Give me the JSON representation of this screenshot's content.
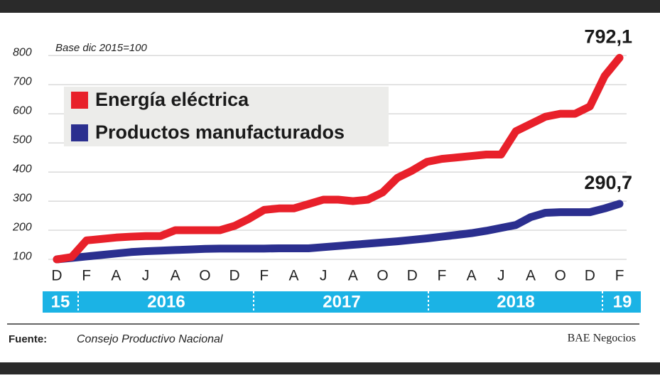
{
  "chart_data": {
    "type": "line",
    "subtitle": "Base dic 2015=100",
    "categories": [
      "D",
      null,
      "F",
      null,
      "A",
      null,
      "J",
      null,
      "A",
      null,
      "O",
      null,
      "D",
      null,
      "F",
      null,
      "A",
      null,
      "J",
      null,
      "A",
      null,
      "O",
      null,
      "D",
      null,
      "F",
      null,
      "A",
      null,
      "J",
      null,
      "A",
      null,
      "O",
      null,
      "D",
      null,
      "F"
    ],
    "year_labels": [
      "15",
      "2016",
      "2017",
      "2018",
      "19"
    ],
    "series": [
      {
        "name": "Energía eléctrica",
        "color": "#e8202a",
        "values": [
          100,
          108,
          165,
          170,
          175,
          178,
          180,
          180,
          200,
          200,
          200,
          200,
          215,
          240,
          270,
          275,
          275,
          290,
          305,
          305,
          300,
          305,
          330,
          380,
          405,
          435,
          445,
          450,
          455,
          460,
          460,
          540,
          565,
          590,
          600,
          600,
          625,
          730,
          792.1
        ],
        "value_labels": [
          null,
          null,
          null,
          null,
          null,
          null,
          null,
          null,
          null,
          null,
          null,
          null,
          null,
          null,
          null,
          null,
          null,
          null,
          null,
          null,
          null,
          null,
          null,
          null,
          null,
          null,
          null,
          null,
          null,
          null,
          null,
          null,
          null,
          null,
          null,
          null,
          null,
          null,
          "792,1"
        ]
      },
      {
        "name": "Productos manufacturados",
        "color": "#2b2f8f",
        "values": [
          100,
          105,
          110,
          115,
          120,
          125,
          128,
          130,
          132,
          134,
          136,
          137,
          137,
          137,
          137,
          138,
          138,
          138,
          142,
          146,
          150,
          154,
          158,
          162,
          167,
          172,
          178,
          184,
          190,
          198,
          208,
          218,
          245,
          260,
          262,
          262,
          262,
          275,
          290.7
        ],
        "value_labels": [
          null,
          null,
          null,
          null,
          null,
          null,
          null,
          null,
          null,
          null,
          null,
          null,
          null,
          null,
          null,
          null,
          null,
          null,
          null,
          null,
          null,
          null,
          null,
          null,
          null,
          null,
          null,
          null,
          null,
          null,
          null,
          null,
          null,
          null,
          null,
          null,
          null,
          null,
          "290,7"
        ]
      }
    ],
    "ylim": [
      83,
      815
    ],
    "yticks": [
      100,
      200,
      300,
      400,
      500,
      600,
      700,
      800
    ],
    "grid": true,
    "source_label": "Fuente:",
    "source": "Consejo Productivo Nacional",
    "credit": "BAE Negocios"
  }
}
